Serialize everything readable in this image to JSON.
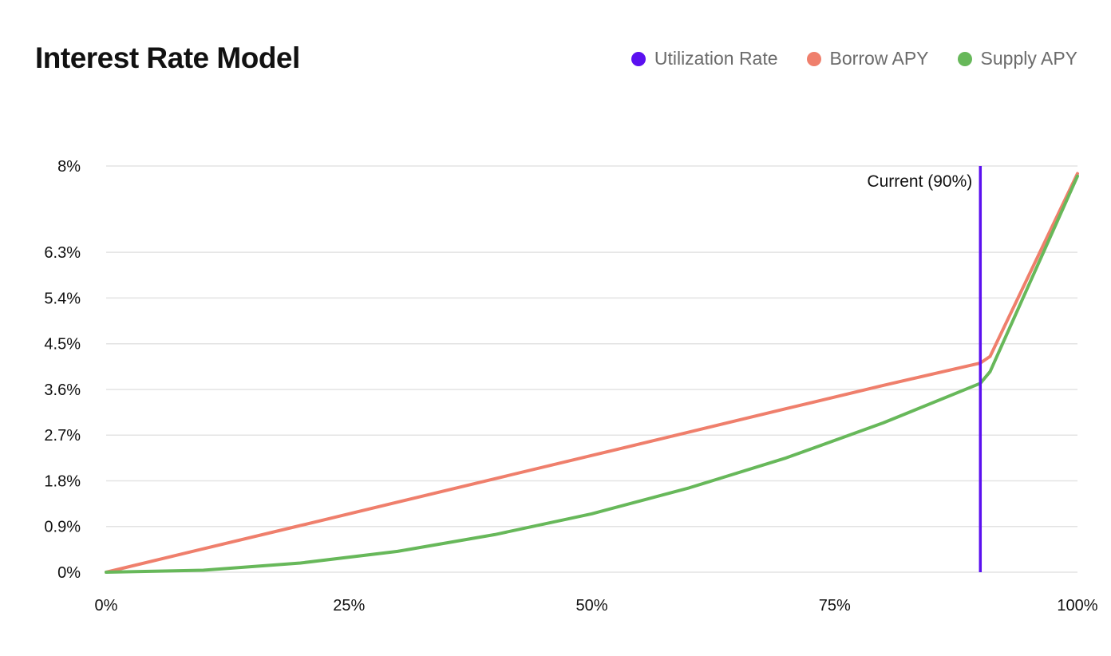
{
  "title": "Interest Rate Model",
  "legend": [
    {
      "label": "Utilization Rate",
      "color": "#5b10f0"
    },
    {
      "label": "Borrow APY",
      "color": "#ef7f6c"
    },
    {
      "label": "Supply APY",
      "color": "#67b85a"
    }
  ],
  "chart_data": {
    "type": "line",
    "title": "Interest Rate Model",
    "xlabel": "",
    "ylabel": "",
    "xlim": [
      0,
      100
    ],
    "ylim": [
      0,
      8
    ],
    "grid": true,
    "legend_position": "top-right",
    "x_ticks": [
      {
        "value": 0,
        "label": "0%"
      },
      {
        "value": 25,
        "label": "25%"
      },
      {
        "value": 50,
        "label": "50%"
      },
      {
        "value": 75,
        "label": "75%"
      },
      {
        "value": 100,
        "label": "100%"
      }
    ],
    "y_ticks": [
      {
        "value": 0,
        "label": "0%"
      },
      {
        "value": 0.9,
        "label": "0.9%"
      },
      {
        "value": 1.8,
        "label": "1.8%"
      },
      {
        "value": 2.7,
        "label": "2.7%"
      },
      {
        "value": 3.6,
        "label": "3.6%"
      },
      {
        "value": 4.5,
        "label": "4.5%"
      },
      {
        "value": 5.4,
        "label": "5.4%"
      },
      {
        "value": 6.3,
        "label": "6.3%"
      },
      {
        "value": 8,
        "label": "8%"
      }
    ],
    "series": [
      {
        "name": "Borrow APY",
        "color": "#ef7f6c",
        "x": [
          0,
          10,
          20,
          30,
          40,
          50,
          60,
          70,
          80,
          90,
          91,
          100
        ],
        "y": [
          0,
          0.46,
          0.92,
          1.38,
          1.84,
          2.3,
          2.76,
          3.22,
          3.68,
          4.12,
          4.25,
          7.85
        ]
      },
      {
        "name": "Supply APY",
        "color": "#67b85a",
        "x": [
          0,
          10,
          20,
          30,
          40,
          50,
          60,
          70,
          80,
          90,
          91,
          100
        ],
        "y": [
          0,
          0.04,
          0.18,
          0.41,
          0.74,
          1.15,
          1.66,
          2.25,
          2.94,
          3.72,
          3.95,
          7.8
        ]
      }
    ],
    "marker": {
      "series": "Utilization Rate",
      "x": 90,
      "label": "Current (90%)",
      "color": "#5b10f0"
    }
  }
}
